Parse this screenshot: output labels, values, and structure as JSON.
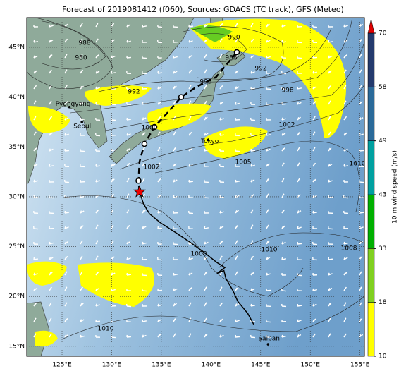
{
  "map": {
    "title": "Forecast of 2019081412 (f060), Sources: GDACS (TC track), GFS (Meteo)",
    "lon_range": [
      121.45,
      155.45
    ],
    "lat_range": [
      14.0,
      47.97
    ],
    "lon_ticks": [
      {
        "value": 125,
        "label": "125°E"
      },
      {
        "value": 130,
        "label": "130°E"
      },
      {
        "value": 135,
        "label": "135°E"
      },
      {
        "value": 140,
        "label": "140°E"
      },
      {
        "value": 145,
        "label": "145°E"
      },
      {
        "value": 150,
        "label": "150°E"
      },
      {
        "value": 155,
        "label": "155°E"
      }
    ],
    "lat_ticks": [
      {
        "value": 45,
        "label": "45°N"
      },
      {
        "value": 40,
        "label": "40°N"
      },
      {
        "value": 35,
        "label": "35°N"
      },
      {
        "value": 30,
        "label": "30°N"
      },
      {
        "value": 25,
        "label": "25°N"
      },
      {
        "value": 20,
        "label": "20°N"
      },
      {
        "value": 15,
        "label": "15°N"
      }
    ],
    "cities": [
      {
        "name": "Pyongyang",
        "lon": 125.75,
        "lat": 39.0
      },
      {
        "name": "Seoul",
        "lon": 127.0,
        "lat": 37.5
      },
      {
        "name": "Tokyo",
        "lon": 139.7,
        "lat": 35.7
      },
      {
        "name": "Saipan",
        "lon": 145.75,
        "lat": 15.2
      }
    ],
    "isobar_labels": [
      "988",
      "980",
      "990",
      "988",
      "992",
      "992",
      "995",
      "998",
      "1000",
      "1002",
      "1002",
      "1005",
      "1010",
      "1008",
      "1010",
      "1008",
      "1010"
    ],
    "track_observed": {
      "lon": [
        144.3,
        143.7,
        142.7,
        142.2,
        141.5,
        141.3,
        140.6,
        141.4,
        140.6,
        139.2,
        137.8,
        136.3,
        134.9,
        133.8,
        133.2,
        132.8
      ],
      "lat": [
        17.2,
        18.3,
        19.5,
        20.6,
        21.8,
        22.6,
        22.3,
        22.9,
        23.4,
        24.5,
        25.5,
        26.5,
        27.4,
        28.3,
        29.3,
        30.5
      ]
    },
    "track_forecast": {
      "lon": [
        132.8,
        132.7,
        132.8,
        133.3,
        134.3,
        135.5,
        137.0,
        138.5,
        140.5,
        142.6
      ],
      "lat": [
        30.5,
        31.6,
        33.5,
        35.3,
        37.0,
        38.3,
        40.0,
        41.0,
        42.0,
        44.5
      ]
    },
    "colorbar": {
      "label": "10 m wind speed (m/s)",
      "ticks": [
        10,
        18,
        33,
        43,
        49,
        58,
        70
      ],
      "colors": [
        "#ffff00",
        "#80d020",
        "#00b000",
        "#00a0a0",
        "#2a6a9a",
        "#243a6e"
      ],
      "extend_color": "#e00000"
    }
  }
}
